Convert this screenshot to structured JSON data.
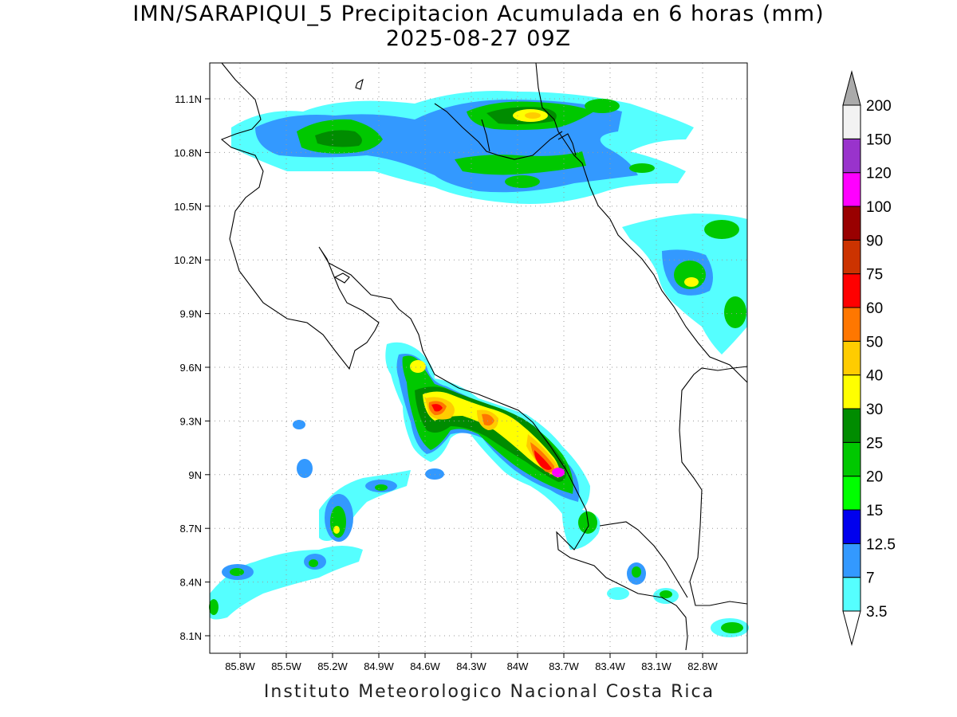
{
  "title": {
    "line1": "IMN/SARAPIQUI_5 Precipitacion Acumulada en 6 horas (mm)",
    "line2": "2025-08-27 09Z"
  },
  "credit": "Instituto Meteorologico Nacional Costa Rica",
  "axes": {
    "x_ticks": [
      "85.8W",
      "85.5W",
      "85.2W",
      "84.9W",
      "84.6W",
      "84.3W",
      "84W",
      "83.7W",
      "83.4W",
      "83.1W",
      "82.8W"
    ],
    "y_ticks": [
      "11.1N",
      "10.8N",
      "10.5N",
      "10.2N",
      "9.9N",
      "9.6N",
      "9.3N",
      "9N",
      "8.7N",
      "8.4N",
      "8.1N"
    ]
  },
  "colorbar": {
    "levels": [
      "3.5",
      "7",
      "12.5",
      "15",
      "20",
      "25",
      "30",
      "40",
      "50",
      "60",
      "75",
      "90",
      "100",
      "120",
      "150",
      "200"
    ],
    "colors": [
      "#55ffff",
      "#3399ff",
      "#0000ee",
      "#00ff00",
      "#00c800",
      "#008c00",
      "#ffff00",
      "#ffcc00",
      "#ff7700",
      "#ff0000",
      "#cc3300",
      "#990000",
      "#ff00ff",
      "#9933cc",
      "#f2f2f2",
      "#aaaaaa"
    ]
  },
  "ocean_label": "",
  "colors": {
    "coast": "#000000",
    "grid": "#9a9a9a"
  }
}
